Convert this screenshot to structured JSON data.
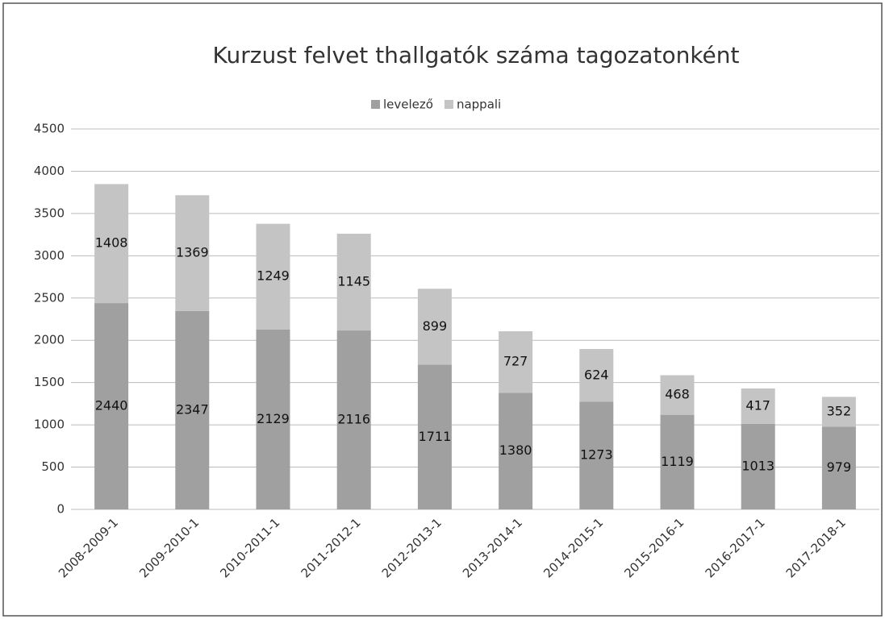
{
  "chart_data": {
    "type": "stacked_bar",
    "title": "Kurzust felvet thallgatók száma tagozatonként",
    "categories": [
      "2008-2009-1",
      "2009-2010-1",
      "2010-2011-1",
      "2011-2012-1",
      "2012-2013-1",
      "2013-2014-1",
      "2014-2015-1",
      "2015-2016-1",
      "2016-2017-1",
      "2017-2018-1"
    ],
    "series": [
      {
        "name": "levelező",
        "color": "#a0a0a0",
        "values": [
          2440,
          2347,
          2129,
          2116,
          1711,
          1380,
          1273,
          1119,
          1013,
          979
        ]
      },
      {
        "name": "nappali",
        "color": "#c4c4c4",
        "values": [
          1408,
          1369,
          1249,
          1145,
          899,
          727,
          624,
          468,
          417,
          352
        ]
      }
    ],
    "ylim": [
      0,
      4500
    ],
    "yticks": [
      0,
      500,
      1000,
      1500,
      2000,
      2500,
      3000,
      3500,
      4000,
      4500
    ],
    "grid": true,
    "legend": "top"
  }
}
